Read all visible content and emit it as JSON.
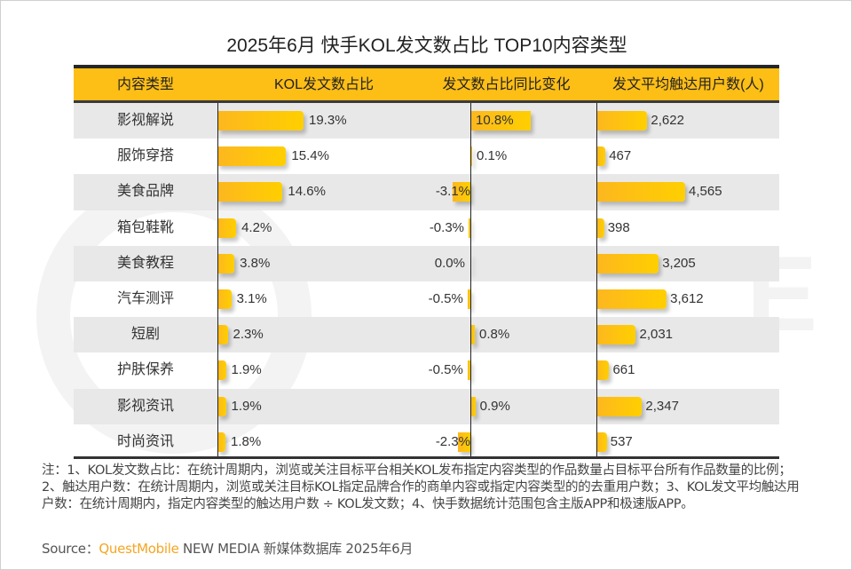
{
  "title": "2025年6月 快手KOL发文数占比 TOP10内容类型",
  "colors": {
    "header_bg": "#fdbe16",
    "bar_start": "#fdb71f",
    "bar_end": "#ffcf00",
    "brand": "#f5a623"
  },
  "chart_data": {
    "type": "table",
    "title": "2025年6月 快手KOL发文数占比 TOP10内容类型",
    "columns": [
      "内容类型",
      "KOL发文数占比",
      "发文数占比同比变化",
      "发文平均触达用户数(人)"
    ],
    "rows": [
      {
        "category": "影视解说",
        "share": 19.3,
        "share_label": "19.3%",
        "yoy": 10.8,
        "yoy_label": "10.8%",
        "reach": 2622,
        "reach_label": "2,622"
      },
      {
        "category": "服饰穿搭",
        "share": 15.4,
        "share_label": "15.4%",
        "yoy": 0.1,
        "yoy_label": "0.1%",
        "reach": 467,
        "reach_label": "467"
      },
      {
        "category": "美食品牌",
        "share": 14.6,
        "share_label": "14.6%",
        "yoy": -3.1,
        "yoy_label": "-3.1%",
        "reach": 4565,
        "reach_label": "4,565"
      },
      {
        "category": "箱包鞋靴",
        "share": 4.2,
        "share_label": "4.2%",
        "yoy": -0.3,
        "yoy_label": "-0.3%",
        "reach": 398,
        "reach_label": "398"
      },
      {
        "category": "美食教程",
        "share": 3.8,
        "share_label": "3.8%",
        "yoy": 0.0,
        "yoy_label": "0.0%",
        "reach": 3205,
        "reach_label": "3,205"
      },
      {
        "category": "汽车测评",
        "share": 3.1,
        "share_label": "3.1%",
        "yoy": -0.5,
        "yoy_label": "-0.5%",
        "reach": 3612,
        "reach_label": "3,612"
      },
      {
        "category": "短剧",
        "share": 2.3,
        "share_label": "2.3%",
        "yoy": 0.8,
        "yoy_label": "0.8%",
        "reach": 2031,
        "reach_label": "2,031"
      },
      {
        "category": "护肤保养",
        "share": 1.9,
        "share_label": "1.9%",
        "yoy": -0.5,
        "yoy_label": "-0.5%",
        "reach": 661,
        "reach_label": "661"
      },
      {
        "category": "影视资讯",
        "share": 1.9,
        "share_label": "1.9%",
        "yoy": 0.9,
        "yoy_label": "0.9%",
        "reach": 2347,
        "reach_label": "2,347"
      },
      {
        "category": "时尚资讯",
        "share": 1.8,
        "share_label": "1.8%",
        "yoy": -2.3,
        "yoy_label": "-2.3%",
        "reach": 537,
        "reach_label": "537"
      }
    ]
  },
  "note": "注：1、KOL发文数占比：在统计周期内，浏览或关注目标平台相关KOL发布指定内容类型的作品数量占目标平台所有作品数量的比例；2、触达用户数：在统计周期内，浏览或关注目标KOL指定品牌合作的商单内容或指定内容类型的的去重用户数；3、KOL发文平均触达用户数：在统计周期内，指定内容类型的触达用户数 ÷ KOL发文数；4、快手数据统计范围包含主版APP和极速版APP。",
  "source": {
    "prefix": "Source：",
    "brand": "QuestMobile",
    "suffix": " NEW MEDIA 新媒体数据库 2025年6月"
  }
}
